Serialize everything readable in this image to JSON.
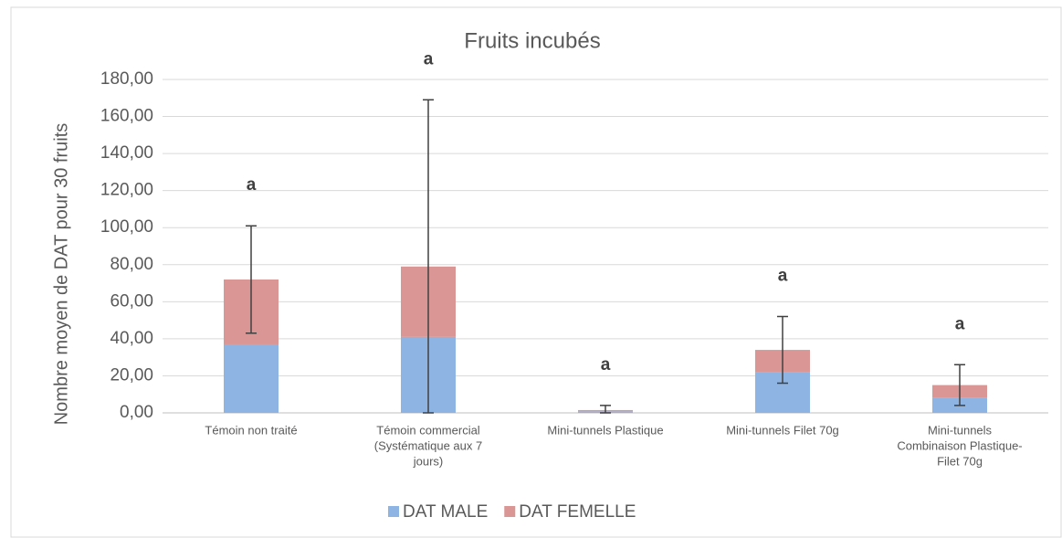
{
  "chart_data": {
    "type": "stacked-bar",
    "title": "Fruits incubés",
    "y_label": "Nombre moyen de DAT pour 30 fruits",
    "categories": [
      [
        "Témoin non traité"
      ],
      [
        "Témoin commercial",
        "(Systématique aux 7",
        "jours)"
      ],
      [
        "Mini-tunnels Plastique"
      ],
      [
        "Mini-tunnels Filet 70g"
      ],
      [
        "Mini-tunnels",
        "Combinaison Plastique-",
        "Filet 70g"
      ]
    ],
    "series": [
      {
        "name": "DAT MALE",
        "color": "#8eb4e3",
        "values": [
          37,
          41,
          0.8,
          22,
          8
        ]
      },
      {
        "name": "DAT FEMELLE",
        "color": "#d99694",
        "values": [
          35,
          38,
          0.7,
          12,
          7
        ]
      }
    ],
    "errors": [
      29,
      90,
      2.5,
      18,
      11
    ],
    "annotations": [
      "a",
      "a",
      "a",
      "a",
      "a"
    ],
    "ylim": [
      0,
      180
    ],
    "yticks": [
      {
        "value": 0,
        "label": "0,00"
      },
      {
        "value": 20,
        "label": "20,00"
      },
      {
        "value": 40,
        "label": "40,00"
      },
      {
        "value": 60,
        "label": "60,00"
      },
      {
        "value": 80,
        "label": "80,00"
      },
      {
        "value": 100,
        "label": "100,00"
      },
      {
        "value": 120,
        "label": "120,00"
      },
      {
        "value": 140,
        "label": "140,00"
      },
      {
        "value": 160,
        "label": "160,00"
      },
      {
        "value": 180,
        "label": "180,00"
      }
    ],
    "grid": true,
    "legend": "bottom"
  }
}
